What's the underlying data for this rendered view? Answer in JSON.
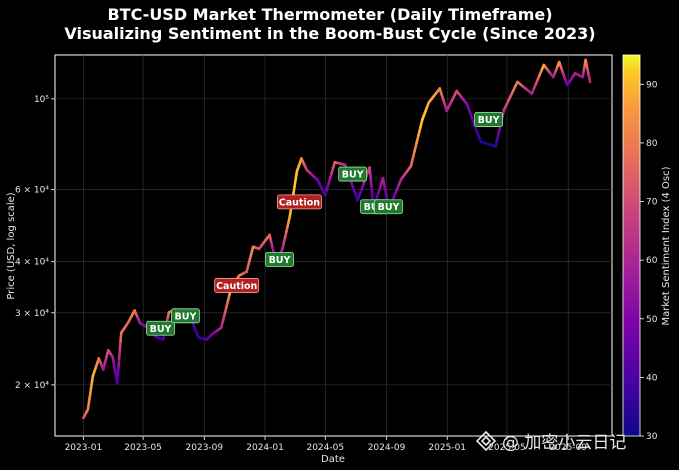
{
  "chart_data": {
    "type": "line",
    "title": "BTC-USD Market Thermometer (Daily Timeframe)",
    "subtitle": "Visualizing Sentiment in the Boom-Bust Cycle (Since 2023)",
    "xlabel": "Date",
    "ylabel": "Price (USD, log scale)",
    "y_scale": "log",
    "ylim": [
      15000,
      128000
    ],
    "x_ticks": [
      "2023-01",
      "2023-05",
      "2023-09",
      "2024-01",
      "2024-05",
      "2024-09",
      "2025-01",
      "2025-05",
      "2025-09"
    ],
    "y_ticks": [
      {
        "value": 20000,
        "label": "2 × 10⁴"
      },
      {
        "value": 30000,
        "label": "3 × 10⁴"
      },
      {
        "value": 40000,
        "label": "4 × 10⁴"
      },
      {
        "value": 60000,
        "label": "6 × 10⁴"
      },
      {
        "value": 100000,
        "label": "10⁵"
      }
    ],
    "grid": true,
    "colorbar": {
      "label": "Market Sentiment Index (4 Osc)",
      "range": [
        30,
        95
      ],
      "ticks": [
        30,
        40,
        50,
        60,
        70,
        80,
        90
      ],
      "colormap": "plasma"
    },
    "series": [
      {
        "points": [
          [
            "2023-01-01",
            16600,
            70
          ],
          [
            "2023-01-10",
            17400,
            80
          ],
          [
            "2023-01-20",
            21000,
            90
          ],
          [
            "2023-02-01",
            23200,
            82
          ],
          [
            "2023-02-10",
            21800,
            55
          ],
          [
            "2023-02-20",
            24300,
            72
          ],
          [
            "2023-03-01",
            23400,
            60
          ],
          [
            "2023-03-10",
            20200,
            38
          ],
          [
            "2023-03-18",
            26800,
            80
          ],
          [
            "2023-04-01",
            28400,
            75
          ],
          [
            "2023-04-14",
            30400,
            82
          ],
          [
            "2023-04-25",
            28300,
            55
          ],
          [
            "2023-05-10",
            27600,
            50
          ],
          [
            "2023-05-25",
            26300,
            42
          ],
          [
            "2023-06-10",
            25800,
            36
          ],
          [
            "2023-06-22",
            30100,
            80
          ],
          [
            "2023-07-05",
            30600,
            70
          ],
          [
            "2023-07-20",
            29900,
            55
          ],
          [
            "2023-08-05",
            29200,
            48
          ],
          [
            "2023-08-20",
            26100,
            35
          ],
          [
            "2023-09-05",
            25800,
            38
          ],
          [
            "2023-09-20",
            26800,
            50
          ],
          [
            "2023-10-05",
            27600,
            60
          ],
          [
            "2023-10-25",
            34500,
            88
          ],
          [
            "2023-11-10",
            37000,
            80
          ],
          [
            "2023-11-25",
            37800,
            72
          ],
          [
            "2023-12-08",
            43500,
            85
          ],
          [
            "2023-12-20",
            43000,
            70
          ],
          [
            "2024-01-10",
            46500,
            78
          ],
          [
            "2024-01-23",
            39800,
            40
          ],
          [
            "2024-02-05",
            43000,
            60
          ],
          [
            "2024-02-20",
            51800,
            90
          ],
          [
            "2024-03-05",
            66500,
            92
          ],
          [
            "2024-03-14",
            71500,
            85
          ],
          [
            "2024-03-25",
            67000,
            66
          ],
          [
            "2024-04-15",
            63500,
            50
          ],
          [
            "2024-05-01",
            58200,
            38
          ],
          [
            "2024-05-20",
            70000,
            75
          ],
          [
            "2024-06-10",
            69000,
            62
          ],
          [
            "2024-07-05",
            56500,
            36
          ],
          [
            "2024-07-29",
            68000,
            70
          ],
          [
            "2024-08-06",
            54000,
            34
          ],
          [
            "2024-08-25",
            64000,
            60
          ],
          [
            "2024-09-06",
            53800,
            36
          ],
          [
            "2024-09-30",
            63500,
            62
          ],
          [
            "2024-10-20",
            68500,
            75
          ],
          [
            "2024-11-12",
            89000,
            93
          ],
          [
            "2024-11-25",
            98000,
            88
          ],
          [
            "2024-12-17",
            106000,
            85
          ],
          [
            "2024-12-31",
            93500,
            58
          ],
          [
            "2025-01-20",
            104500,
            72
          ],
          [
            "2025-02-10",
            97000,
            52
          ],
          [
            "2025-02-28",
            84000,
            40
          ],
          [
            "2025-03-10",
            78500,
            34
          ],
          [
            "2025-04-08",
            76500,
            35
          ],
          [
            "2025-04-25",
            94000,
            65
          ],
          [
            "2025-05-22",
            110000,
            82
          ],
          [
            "2025-06-20",
            103000,
            56
          ],
          [
            "2025-07-14",
            121000,
            90
          ],
          [
            "2025-08-02",
            113000,
            54
          ],
          [
            "2025-08-14",
            123000,
            88
          ],
          [
            "2025-08-30",
            108000,
            45
          ],
          [
            "2025-09-15",
            115500,
            60
          ],
          [
            "2025-09-30",
            113000,
            55
          ],
          [
            "2025-10-06",
            124500,
            85
          ],
          [
            "2025-10-15",
            110000,
            58
          ]
        ]
      }
    ],
    "annotations": [
      {
        "label": "BUY",
        "date": "2023-06-05",
        "price": 27500,
        "kind": "buy"
      },
      {
        "label": "BUY",
        "date": "2023-07-25",
        "price": 29500,
        "kind": "buy"
      },
      {
        "label": "Caution",
        "date": "2023-11-05",
        "price": 35000,
        "kind": "caution"
      },
      {
        "label": "BUY",
        "date": "2024-01-30",
        "price": 40500,
        "kind": "buy"
      },
      {
        "label": "Caution",
        "date": "2024-03-10",
        "price": 56000,
        "kind": "caution"
      },
      {
        "label": "BUY",
        "date": "2024-06-25",
        "price": 65500,
        "kind": "buy"
      },
      {
        "label": "BUY",
        "date": "2024-08-08",
        "price": 54500,
        "kind": "buy"
      },
      {
        "label": "BUY",
        "date": "2024-09-05",
        "price": 54500,
        "kind": "buy"
      },
      {
        "label": "BUY",
        "date": "2025-03-25",
        "price": 89000,
        "kind": "buy"
      }
    ],
    "colors": {
      "buy_bg": "#1f7a2e",
      "buy_border": "#9be3a7",
      "caution_bg": "#b02020",
      "caution_border": "#ff9c9c"
    }
  },
  "watermark": {
    "text": "@ 加密小云日记",
    "icon": "diamond-logo-icon"
  }
}
